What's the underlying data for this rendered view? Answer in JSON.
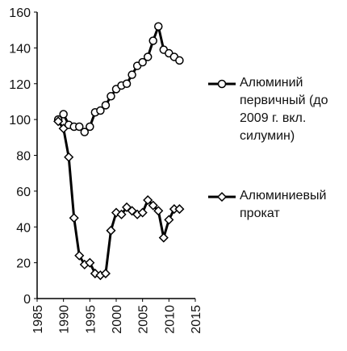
{
  "chart_data": {
    "type": "line",
    "x": [
      1989,
      1990,
      1991,
      1992,
      1993,
      1994,
      1995,
      1996,
      1997,
      1998,
      1999,
      2000,
      2001,
      2002,
      2003,
      2004,
      2005,
      2006,
      2007,
      2008,
      2009,
      2010,
      2011,
      2012
    ],
    "series": [
      {
        "name": "Алюминий первичный (до 2009 г. вкл. силумин)",
        "color": "#000000",
        "marker": "circle",
        "values": [
          100,
          103,
          97,
          96,
          96,
          93,
          96,
          104,
          105,
          108,
          113,
          117,
          119,
          120,
          125,
          130,
          132,
          135,
          144,
          152,
          139,
          137,
          135,
          133
        ]
      },
      {
        "name": "Алюминиевый прокат",
        "color": "#000000",
        "marker": "diamond",
        "values": [
          99,
          95,
          79,
          45,
          24,
          19,
          20,
          14,
          13,
          14,
          38,
          48,
          47,
          51,
          49,
          47,
          48,
          55,
          52,
          49,
          34,
          44,
          50,
          50
        ]
      }
    ],
    "xlim": [
      1985,
      2015
    ],
    "xticks": [
      1985,
      1990,
      1995,
      2000,
      2005,
      2010,
      2015
    ],
    "ylim": [
      0,
      160
    ],
    "yticks": [
      0,
      20,
      40,
      60,
      80,
      100,
      120,
      140,
      160
    ],
    "grid": false,
    "legend": "right"
  }
}
